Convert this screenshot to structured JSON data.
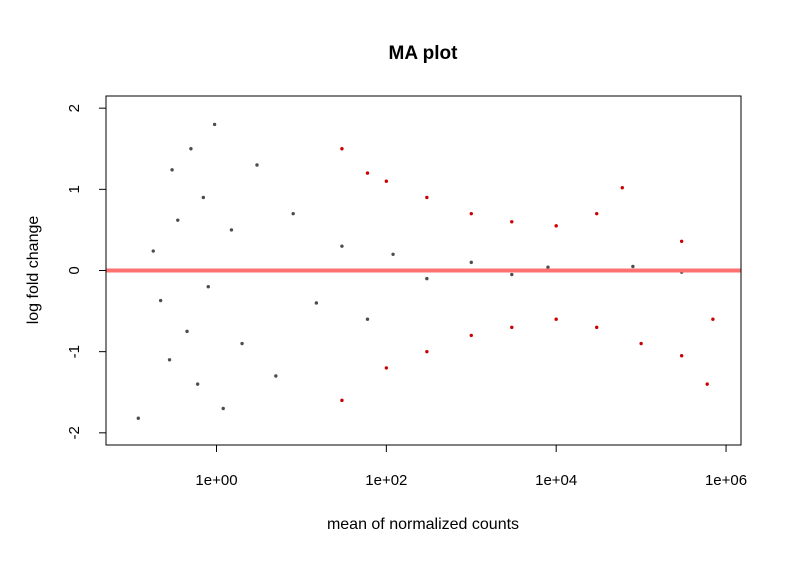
{
  "chart_data": {
    "type": "scatter",
    "title": "MA plot",
    "xlabel": "mean of normalized counts",
    "ylabel": "log fold change",
    "x_scale": "log10",
    "xlim": [
      0.05,
      1500000
    ],
    "ylim": [
      -2.15,
      2.15
    ],
    "x_ticks": [
      1,
      100,
      10000,
      1000000
    ],
    "x_tick_labels": [
      "1e+00",
      "1e+02",
      "1e+04",
      "1e+06"
    ],
    "y_ticks": [
      -2,
      -1,
      0,
      1,
      2
    ],
    "y_tick_labels": [
      "-2",
      "-1",
      "0",
      "1",
      "2"
    ],
    "reference_line": {
      "y": 0,
      "color": "#ff7070"
    },
    "grid": false,
    "colors": {
      "non_significant": "#4d4d4d",
      "significant": "#cc0000"
    },
    "marker_note_encoding": "circle = within range; triangle = value clipped at plot limit",
    "series": [
      {
        "color": "#4d4d4d",
        "values": [
          {
            "x": 0.12,
            "y": -1.82
          },
          {
            "x": 0.18,
            "y": 0.24
          },
          {
            "x": 0.22,
            "y": -0.37
          },
          {
            "x": 0.3,
            "y": 1.24
          },
          {
            "x": 0.28,
            "y": -1.1
          },
          {
            "x": 0.35,
            "y": 0.62
          },
          {
            "x": 0.45,
            "y": -0.75
          },
          {
            "x": 0.5,
            "y": 1.5
          },
          {
            "x": 0.6,
            "y": -1.4
          },
          {
            "x": 0.7,
            "y": 0.9
          },
          {
            "x": 0.8,
            "y": -0.2
          },
          {
            "x": 0.95,
            "y": 1.8
          },
          {
            "x": 1.2,
            "y": -1.7
          },
          {
            "x": 1.5,
            "y": 0.5
          },
          {
            "x": 2.0,
            "y": -0.9
          },
          {
            "x": 3.0,
            "y": 1.3
          },
          {
            "x": 5.0,
            "y": -1.3
          },
          {
            "x": 8.0,
            "y": 0.7
          },
          {
            "x": 15.0,
            "y": -0.4
          },
          {
            "x": 30.0,
            "y": 0.3
          },
          {
            "x": 60.0,
            "y": -0.6
          },
          {
            "x": 120.0,
            "y": 0.2
          },
          {
            "x": 300.0,
            "y": -0.1
          },
          {
            "x": 1000.0,
            "y": 0.1
          },
          {
            "x": 3000.0,
            "y": -0.05
          },
          {
            "x": 8000.0,
            "y": 0.04
          },
          {
            "x": 20000.0,
            "y": 0.0
          },
          {
            "x": 80000.0,
            "y": 0.05
          },
          {
            "x": 300000.0,
            "y": -0.02
          }
        ]
      },
      {
        "color": "#cc0000",
        "values": [
          {
            "x": 30.0,
            "y": 1.5
          },
          {
            "x": 60.0,
            "y": 1.2
          },
          {
            "x": 100.0,
            "y": 1.1
          },
          {
            "x": 300.0,
            "y": 0.9
          },
          {
            "x": 1000.0,
            "y": 0.7
          },
          {
            "x": 3000.0,
            "y": 0.6
          },
          {
            "x": 10000.0,
            "y": 0.55
          },
          {
            "x": 30000.0,
            "y": 0.7
          },
          {
            "x": 60000.0,
            "y": 1.02
          },
          {
            "x": 300000.0,
            "y": 0.36
          },
          {
            "x": 30.0,
            "y": -1.6
          },
          {
            "x": 100.0,
            "y": -1.2
          },
          {
            "x": 300.0,
            "y": -1.0
          },
          {
            "x": 1000.0,
            "y": -0.8
          },
          {
            "x": 3000.0,
            "y": -0.7
          },
          {
            "x": 10000.0,
            "y": -0.6
          },
          {
            "x": 30000.0,
            "y": -0.7
          },
          {
            "x": 100000.0,
            "y": -0.9
          },
          {
            "x": 300000.0,
            "y": -1.05
          },
          {
            "x": 600000.0,
            "y": -1.4
          },
          {
            "x": 700000.0,
            "y": -0.6
          }
        ]
      }
    ]
  }
}
